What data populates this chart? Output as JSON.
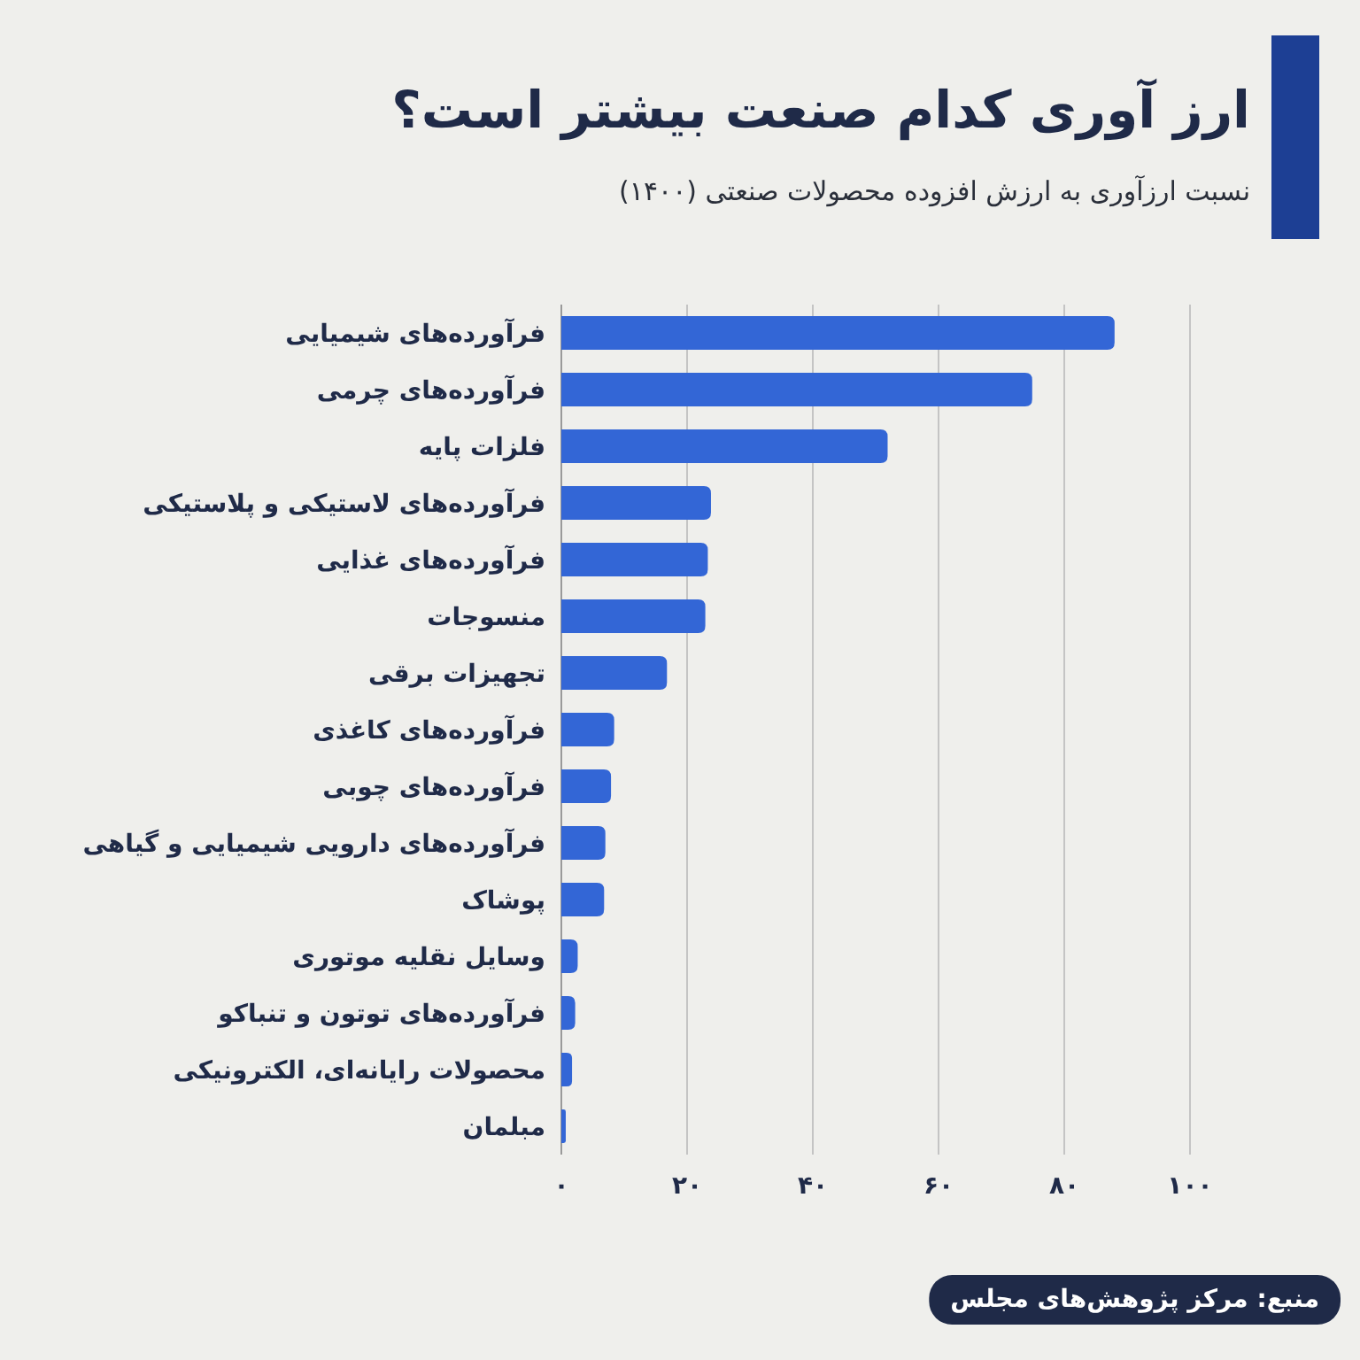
{
  "chart_data": {
    "type": "bar",
    "orientation": "horizontal",
    "title": "ارز آوری کدام صنعت بیشتر است؟",
    "subtitle": "نسبت ارزآوری به ارزش افزوده محصولات صنعتی (۱۴۰۰)",
    "categories": [
      "فرآورده‌های شیمیایی",
      "فرآورده‌های چرمی",
      "فلزات پایه",
      "فرآورده‌های لاستیکی و پلاستیکی",
      "فرآورده‌های غذایی",
      "منسوجات",
      "تجهیزات برقی",
      "فرآورده‌های کاغذی",
      "فرآورده‌های چوبی",
      "فرآورده‌های دارویی شیمیایی و گیاهی",
      "پوشاک",
      "وسایل نقلیه موتوری",
      "فرآورده‌های توتون و تنباکو",
      "محصولات رایانه‌ای، الکترونیکی",
      "مبلمان"
    ],
    "values": [
      88,
      74.9,
      51.9,
      23.8,
      23.3,
      22.9,
      16.8,
      8.4,
      7.9,
      7,
      6.8,
      2.6,
      2.2,
      1.7,
      0.7
    ],
    "color": "#3366d6",
    "xlim": [
      0,
      100
    ],
    "xticks": [
      {
        "value": 0,
        "label": "۰"
      },
      {
        "value": 20,
        "label": "۲۰"
      },
      {
        "value": 40,
        "label": "۴۰"
      },
      {
        "value": 60,
        "label": "۶۰"
      },
      {
        "value": 80,
        "label": "۸۰"
      },
      {
        "value": 100,
        "label": "۱۰۰"
      }
    ],
    "grid": "x",
    "annotations": [
      "منبع: مرکز پژوهش‌های مجلس"
    ]
  }
}
